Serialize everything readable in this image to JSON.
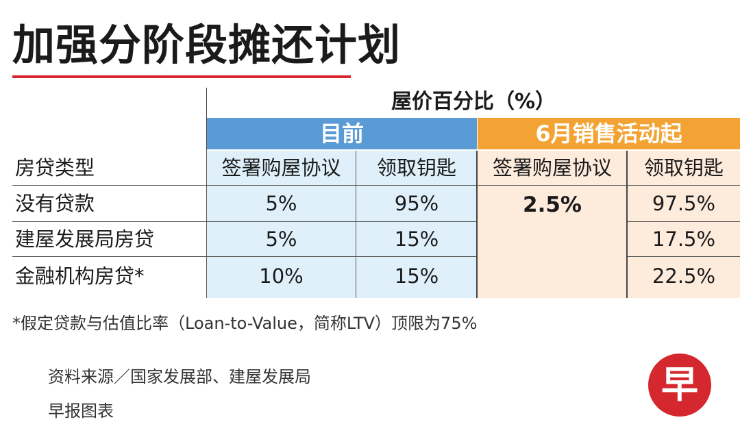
{
  "title": "加强分阶段摊还计划",
  "table": {
    "percent_header": "屋价百分比（%）",
    "group_current": "目前",
    "group_june": "6月销售活动起",
    "col_loan_type": "房贷类型",
    "col_sign_current": "签署购屋协议",
    "col_keys_current": "领取钥匙",
    "col_sign_june": "签署购屋协议",
    "col_keys_june": "领取钥匙",
    "rows": [
      {
        "label": "没有贷款",
        "sign_current": "5%",
        "keys_current": "95%",
        "keys_june": "97.5%"
      },
      {
        "label": "建屋发展局房贷",
        "sign_current": "5%",
        "keys_current": "15%",
        "keys_june": "17.5%"
      },
      {
        "label": "金融机构房贷*",
        "sign_current": "10%",
        "keys_current": "15%",
        "keys_june": "22.5%"
      }
    ],
    "sign_june_merged": "2.5%"
  },
  "footnote": "*假定贷款与估值比率（Loan-to-Value，简称LTV）顶限为75%",
  "source": "资料来源／国家发展部、建屋发展局",
  "credit": "早报图表",
  "logo": {
    "text": "早",
    "color": "#d4272e",
    "icon": "zaobao-logo-icon"
  }
}
